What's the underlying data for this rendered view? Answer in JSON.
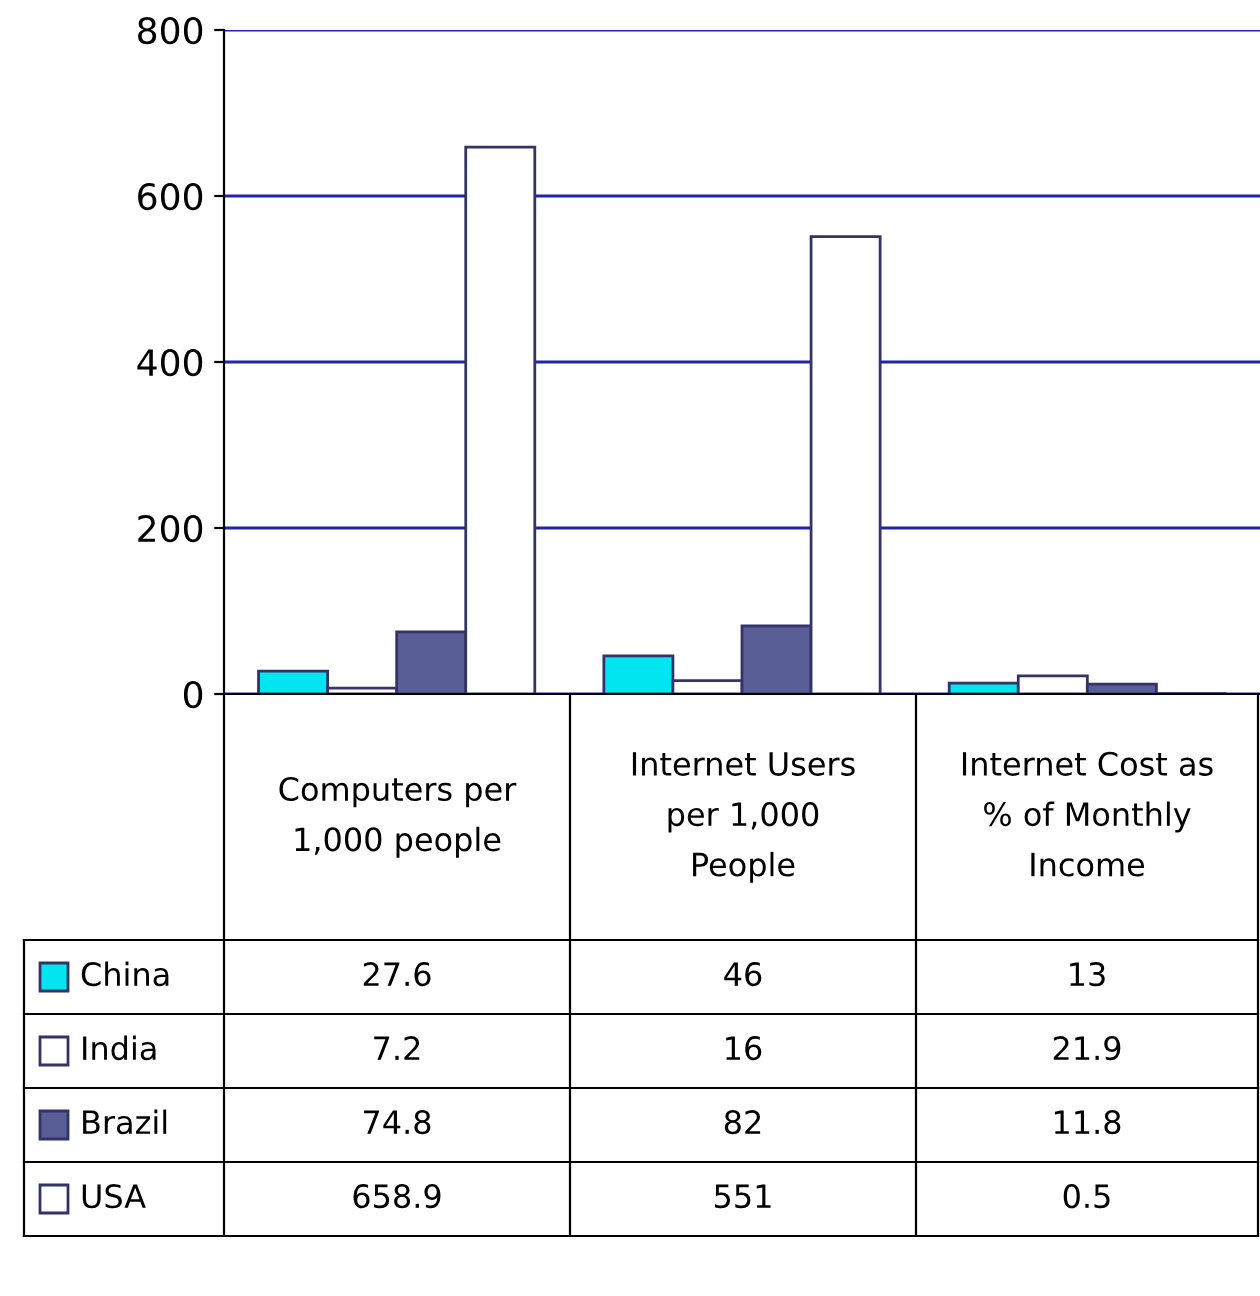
{
  "chart_data": {
    "type": "bar",
    "categories": [
      "Computers per\n1,000 people",
      "Internet Users\nper 1,000\nPeople",
      "Internet Cost as\n% of Monthly\nIncome"
    ],
    "series": [
      {
        "name": "China",
        "color": "#00e5f0",
        "values": [
          27.6,
          46,
          13
        ]
      },
      {
        "name": "India",
        "color": "#ffffff",
        "values": [
          7.2,
          16,
          21.9
        ]
      },
      {
        "name": "Brazil",
        "color": "#5a5e96",
        "values": [
          74.8,
          82,
          11.8
        ]
      },
      {
        "name": "USA",
        "color": "#ffffff",
        "values": [
          658.9,
          551,
          0.5
        ]
      }
    ],
    "ylim": [
      0,
      800
    ],
    "yticks": [
      0,
      200,
      400,
      600,
      800
    ],
    "grid": "y",
    "legend": "bottom left",
    "data_labels": true
  }
}
